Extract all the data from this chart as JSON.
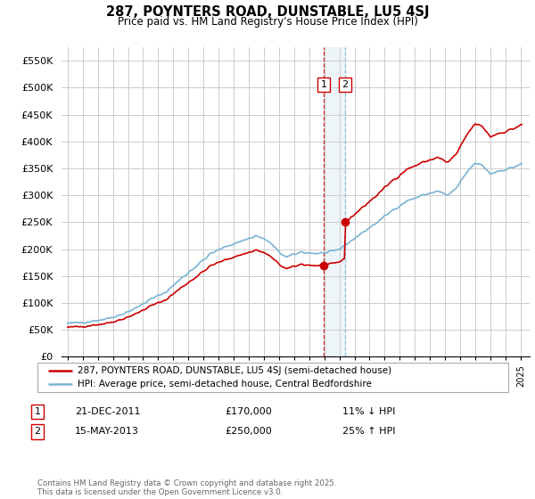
{
  "title": "287, POYNTERS ROAD, DUNSTABLE, LU5 4SJ",
  "subtitle": "Price paid vs. HM Land Registry's House Price Index (HPI)",
  "legend_line1": "287, POYNTERS ROAD, DUNSTABLE, LU5 4SJ (semi-detached house)",
  "legend_line2": "HPI: Average price, semi-detached house, Central Bedfordshire",
  "footer": "Contains HM Land Registry data © Crown copyright and database right 2025.\nThis data is licensed under the Open Government Licence v3.0.",
  "sale1_date": "21-DEC-2011",
  "sale1_price": 170000,
  "sale1_note": "11% ↓ HPI",
  "sale2_date": "15-MAY-2013",
  "sale2_price": 250000,
  "sale2_note": "25% ↑ HPI",
  "hpi_color": "#7ab3d4",
  "price_color": "#cc0000",
  "vline1_color": "#cc0000",
  "vline2_color": "#7ab3d4",
  "bg_color": "#ffffff",
  "grid_color": "#cccccc",
  "ylim": [
    0,
    575000
  ],
  "yticks": [
    0,
    50000,
    100000,
    150000,
    200000,
    250000,
    300000,
    350000,
    400000,
    450000,
    500000,
    550000
  ],
  "ytick_labels": [
    "£0",
    "£50K",
    "£100K",
    "£150K",
    "£200K",
    "£250K",
    "£300K",
    "£350K",
    "£400K",
    "£450K",
    "£500K",
    "£550K"
  ],
  "sale1_x": 2011.97,
  "sale2_x": 2013.37,
  "xtick_start": 1995,
  "xtick_end": 2025
}
